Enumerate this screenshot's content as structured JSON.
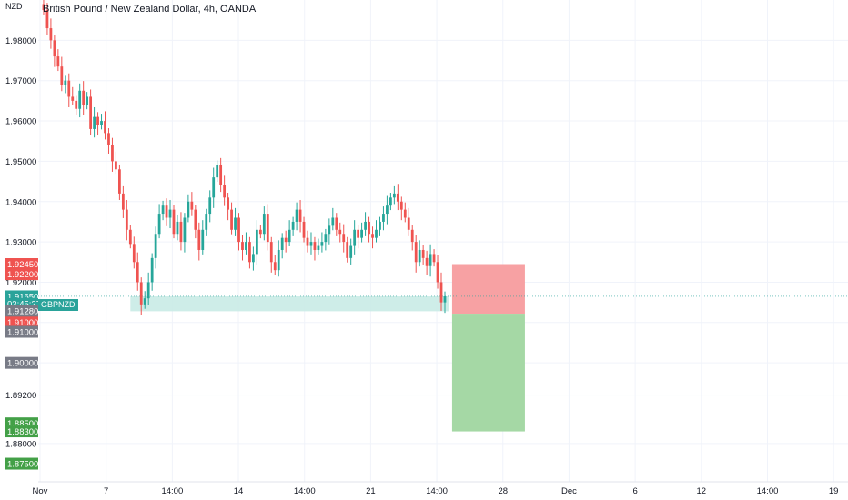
{
  "title": "British Pound / New Zealand Dollar, 4h, OANDA",
  "unit": "NZD",
  "symbol": "GBPNZD",
  "colors": {
    "up": "#26a69a",
    "down": "#ef5350",
    "stop": "#f7a1a3",
    "target": "#a5d8a5",
    "zone": "#c9ebe6",
    "grid": "#f0f3fa",
    "axis": "#131722"
  },
  "chart_data": {
    "type": "candlestick",
    "title": "British Pound / New Zealand Dollar, 4h, OANDA",
    "xlabel": "",
    "ylabel": "NZD",
    "ylim": [
      1.8705,
      1.99
    ],
    "y_ticks": [
      "1.98000",
      "1.97000",
      "1.96000",
      "1.95000",
      "1.94000",
      "1.93000",
      "1.92000",
      "1.91000",
      "1.90000",
      "1.89200",
      "1.88000"
    ],
    "x_ticks": [
      "Nov",
      "7",
      "14:00",
      "14",
      "14:00",
      "21",
      "14:00",
      "28",
      "Dec",
      "6",
      "12",
      "14:00",
      "19"
    ],
    "candles_close": [
      1.9875,
      1.983,
      1.98,
      1.976,
      1.9735,
      1.969,
      1.97,
      1.966,
      1.965,
      1.963,
      1.9675,
      1.964,
      1.966,
      1.958,
      1.961,
      1.959,
      1.96,
      1.957,
      1.954,
      1.95,
      1.948,
      1.942,
      1.938,
      1.933,
      1.9295,
      1.925,
      1.92,
      1.9145,
      1.916,
      1.92,
      1.926,
      1.932,
      1.937,
      1.939,
      1.936,
      1.938,
      1.932,
      1.935,
      1.93,
      1.936,
      1.94,
      1.938,
      1.933,
      1.928,
      1.933,
      1.937,
      1.941,
      1.946,
      1.949,
      1.944,
      1.941,
      1.938,
      1.933,
      1.936,
      1.93,
      1.928,
      1.93,
      1.925,
      1.927,
      1.933,
      1.932,
      1.937,
      1.93,
      1.925,
      1.923,
      1.928,
      1.931,
      1.93,
      1.933,
      1.935,
      1.938,
      1.935,
      1.931,
      1.929,
      1.93,
      1.928,
      1.929,
      1.93,
      1.932,
      1.934,
      1.936,
      1.933,
      1.932,
      1.93,
      1.926,
      1.929,
      1.933,
      1.931,
      1.933,
      1.935,
      1.932,
      1.931,
      1.933,
      1.935,
      1.937,
      1.939,
      1.941,
      1.942,
      1.94,
      1.938,
      1.936,
      1.933,
      1.93,
      1.925,
      1.928,
      1.926,
      1.924,
      1.927,
      1.925,
      1.92,
      1.915,
      1.9165
    ],
    "open": 1.989,
    "candle_slots": {
      "start": 1,
      "end": 129
    },
    "x_axis_slots": {
      "start": 0,
      "end": 224
    },
    "current_price": 1.9165,
    "time_to_close": "03:45:27",
    "support_zone": {
      "low": 1.9128,
      "high": 1.9165
    },
    "position": {
      "entry": 1.9122,
      "stop": 1.9245,
      "target": 1.883
    },
    "price_tags": [
      {
        "value": "1.92450",
        "level": 1.9245,
        "color": "#ef5350"
      },
      {
        "value": "1.92200",
        "level": 1.922,
        "color": "#ef5350"
      },
      {
        "value": "1.91650",
        "level": 1.9165,
        "color": "#2aa39a"
      },
      {
        "value": "03:45:27",
        "level": 1.9146,
        "color": "#2aa39a"
      },
      {
        "value": "1.91280",
        "level": 1.9128,
        "color": "#787b86"
      },
      {
        "value": "1.91000",
        "level": 1.91,
        "color": "#ef5350"
      },
      {
        "value": "1.91000",
        "level": 1.9077,
        "color": "#787b86"
      },
      {
        "value": "1.90000",
        "level": 1.9,
        "color": "#787b86"
      },
      {
        "value": "1.88500",
        "level": 1.885,
        "color": "#43a047"
      },
      {
        "value": "1.88300",
        "level": 1.883,
        "color": "#43a047"
      },
      {
        "value": "1.87500",
        "level": 1.875,
        "color": "#43a047"
      }
    ]
  }
}
